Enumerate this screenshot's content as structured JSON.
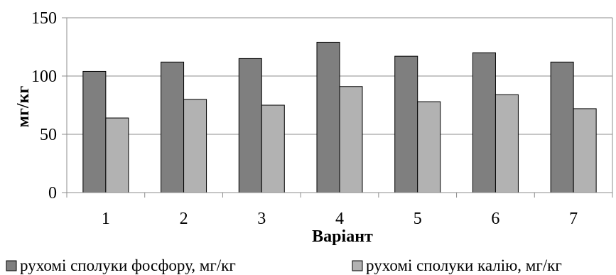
{
  "chart_data": {
    "type": "bar",
    "categories": [
      "1",
      "2",
      "3",
      "4",
      "5",
      "6",
      "7"
    ],
    "series": [
      {
        "name": "рухомі сполуки фосфору, мг/кг",
        "values": [
          104,
          112,
          115,
          129,
          117,
          120,
          112
        ],
        "color": "#7f7f7f"
      },
      {
        "name": "рухомі сполуки калію, мг/кг",
        "values": [
          64,
          80,
          75,
          91,
          78,
          84,
          72
        ],
        "color": "#b2b2b2"
      }
    ],
    "xlabel": "Варіант",
    "ylabel": "мг/кг",
    "ylim": [
      0,
      150
    ],
    "yticks": [
      "0",
      "50",
      "100",
      "150"
    ],
    "grid": true,
    "legend_position": "bottom"
  }
}
